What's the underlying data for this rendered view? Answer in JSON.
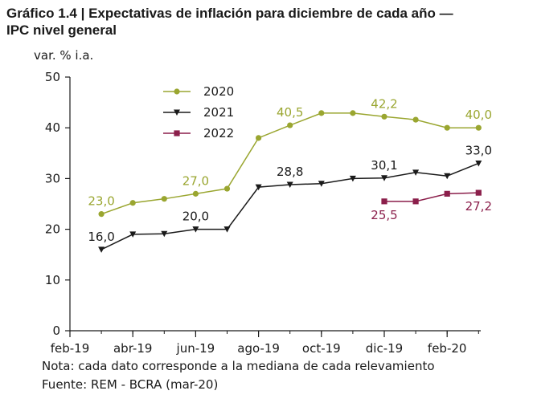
{
  "title_line1": "Gráfico 1.4 | Expectativas de inflación para diciembre de cada año —",
  "title_line2": "IPC nivel general",
  "note": "Nota: cada dato corresponde a la mediana de cada relevamiento",
  "source": "Fuente: REM - BCRA (mar-20)",
  "chart_data": {
    "type": "line",
    "title": "Expectativas de inflación para diciembre de cada año — IPC nivel general",
    "ylabel": "var. % i.a.",
    "xlabel": "",
    "ylim": [
      0,
      50
    ],
    "yticks": [
      0,
      10,
      20,
      30,
      40,
      50
    ],
    "x_domain": [
      0,
      13
    ],
    "x_ticks": [
      {
        "x": 0,
        "label": "feb-19"
      },
      {
        "x": 2,
        "label": "abr-19"
      },
      {
        "x": 4,
        "label": "jun-19"
      },
      {
        "x": 6,
        "label": "ago-19"
      },
      {
        "x": 8,
        "label": "oct-19"
      },
      {
        "x": 10,
        "label": "dic-19"
      },
      {
        "x": 12,
        "label": "feb-20"
      }
    ],
    "legend_position": "top-left",
    "series": [
      {
        "name": "2020",
        "color": "#9aa630",
        "marker": "circle",
        "x": [
          1,
          2,
          3,
          4,
          5,
          6,
          7,
          8,
          9,
          10,
          11,
          12,
          13
        ],
        "values": [
          23.0,
          25.2,
          26.0,
          27.0,
          28.0,
          38.0,
          40.5,
          42.9,
          42.9,
          42.2,
          41.6,
          40.0,
          40.0
        ],
        "data_labels": [
          {
            "index": 0,
            "text": "23,0",
            "pos": "above"
          },
          {
            "index": 3,
            "text": "27,0",
            "pos": "above"
          },
          {
            "index": 6,
            "text": "40,5",
            "pos": "above"
          },
          {
            "index": 9,
            "text": "42,2",
            "pos": "above"
          },
          {
            "index": 12,
            "text": "40,0",
            "pos": "above"
          }
        ]
      },
      {
        "name": "2021",
        "color": "#1a1a1a",
        "marker": "triangle-down",
        "x": [
          1,
          2,
          3,
          4,
          5,
          6,
          7,
          8,
          9,
          10,
          11,
          12,
          13
        ],
        "values": [
          16.0,
          19.0,
          19.1,
          20.0,
          20.0,
          28.3,
          28.8,
          29.0,
          30.0,
          30.1,
          31.2,
          30.5,
          33.0
        ],
        "data_labels": [
          {
            "index": 0,
            "text": "16,0",
            "pos": "above"
          },
          {
            "index": 3,
            "text": "20,0",
            "pos": "above"
          },
          {
            "index": 6,
            "text": "28,8",
            "pos": "above"
          },
          {
            "index": 9,
            "text": "30,1",
            "pos": "above"
          },
          {
            "index": 12,
            "text": "33,0",
            "pos": "above"
          }
        ]
      },
      {
        "name": "2022",
        "color": "#8b1f4b",
        "marker": "square",
        "x": [
          10,
          11,
          12,
          13
        ],
        "values": [
          25.5,
          25.5,
          27.0,
          27.2
        ],
        "data_labels": [
          {
            "index": 0,
            "text": "25,5",
            "pos": "below"
          },
          {
            "index": 3,
            "text": "27,2",
            "pos": "below"
          }
        ]
      }
    ]
  }
}
